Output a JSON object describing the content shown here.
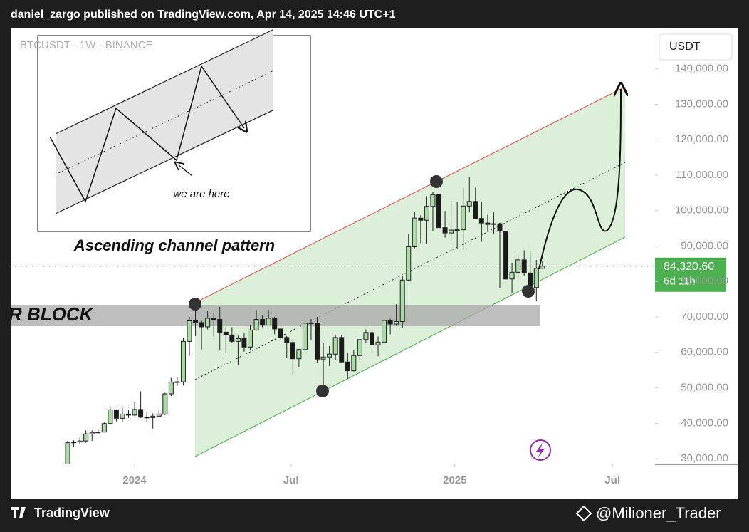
{
  "chart_data": {
    "type": "candlestick",
    "publisher_note": "daniel_zargo published on TradingView.com, Apr 14, 2025 14:46 UTC+1",
    "symbol_legend": "BTCUSDT · 1W · BINANCE",
    "currency": "USDT",
    "annotations": {
      "zone": "R BLOCK",
      "caption": "Ascending channel pattern",
      "pointer": "we are here"
    },
    "footer_logo": "TradingView",
    "watermark": "@Milioner_Trader",
    "open": [
      27200,
      34500,
      34700,
      35000,
      37000,
      37400,
      37500,
      39900,
      43800,
      41400,
      42600,
      42300,
      43900,
      41700,
      41600,
      42000,
      42600,
      48300,
      51600,
      51700,
      63100,
      68900,
      68400,
      67200,
      69600,
      69300,
      65700,
      64900,
      63100,
      63900,
      61500,
      66300,
      69300,
      67700,
      69600,
      66600,
      64200,
      62800,
      58200,
      60800,
      68200,
      68300,
      58100,
      58700,
      59500,
      64200,
      57300,
      54800,
      59100,
      63600,
      65600,
      62100,
      62900,
      69000,
      68000,
      68700,
      80400,
      89800,
      97900,
      97300,
      101200,
      104500,
      95200,
      93700,
      94500,
      94600,
      101300,
      102600,
      97800,
      96500,
      96100,
      96300,
      94200,
      80700,
      82600,
      86100,
      82400,
      78300,
      83700
    ],
    "high": [
      35000,
      35200,
      35900,
      38000,
      38000,
      38400,
      40200,
      44500,
      43800,
      44400,
      43900,
      45900,
      49000,
      43200,
      42800,
      43800,
      48600,
      52800,
      52900,
      64000,
      70000,
      73800,
      68900,
      71800,
      71300,
      72800,
      66900,
      67100,
      64700,
      65500,
      67700,
      71900,
      70600,
      72000,
      70000,
      66900,
      64600,
      63800,
      61000,
      68400,
      69400,
      70000,
      62700,
      61800,
      65000,
      64900,
      59800,
      60700,
      64100,
      66500,
      66000,
      64500,
      69400,
      69500,
      73600,
      81500,
      93500,
      99600,
      98700,
      104100,
      105300,
      108300,
      99900,
      102700,
      102500,
      106400,
      109600,
      106500,
      102500,
      98800,
      99500,
      96600,
      94400,
      85300,
      87400,
      88800,
      88500,
      86100,
      85800
    ],
    "low": [
      26900,
      33400,
      34100,
      34500,
      35000,
      36800,
      37500,
      39900,
      40500,
      40500,
      41500,
      42000,
      41500,
      40500,
      38500,
      41800,
      42300,
      47700,
      50500,
      50900,
      59000,
      64600,
      60800,
      66500,
      64500,
      60600,
      59600,
      62800,
      56500,
      60200,
      60800,
      66100,
      67100,
      67600,
      65100,
      63400,
      58400,
      53500,
      55900,
      60100,
      63500,
      57100,
      49000,
      56100,
      57800,
      57200,
      52500,
      54600,
      57500,
      62700,
      59800,
      58900,
      62900,
      65100,
      67500,
      66800,
      80200,
      89400,
      90800,
      90500,
      94200,
      92200,
      92400,
      91400,
      89200,
      89300,
      99500,
      97700,
      91200,
      94100,
      93400,
      78200,
      80000,
      76600,
      81200,
      81600,
      77100,
      74400,
      83700
    ],
    "close": [
      34500,
      34700,
      35000,
      37000,
      37400,
      37500,
      39900,
      43800,
      41400,
      42600,
      42300,
      43900,
      41700,
      41600,
      42000,
      42600,
      48300,
      51600,
      51700,
      63100,
      68900,
      68400,
      67200,
      69600,
      69300,
      65700,
      64900,
      63100,
      63900,
      61500,
      66300,
      69300,
      67700,
      69600,
      66600,
      64200,
      62800,
      58200,
      60800,
      68200,
      68300,
      58100,
      58700,
      59500,
      64200,
      57300,
      54800,
      59100,
      63600,
      65600,
      62100,
      62900,
      69000,
      68000,
      68700,
      80400,
      89800,
      97900,
      97300,
      101200,
      104500,
      95200,
      93700,
      94500,
      94600,
      101300,
      102600,
      97800,
      96500,
      96100,
      96300,
      94200,
      80700,
      82600,
      86100,
      82400,
      78300,
      83700,
      84300
    ],
    "up_color": "#a9dca6",
    "down_color": "#1b1b1b",
    "ylim": [
      28400,
      151400
    ],
    "yticks": [
      {
        "value": 30000,
        "label": "30,000.00"
      },
      {
        "value": 40000,
        "label": "40,000.00"
      },
      {
        "value": 50000,
        "label": "50,000.00"
      },
      {
        "value": 60000,
        "label": "60,000.00"
      },
      {
        "value": 70000,
        "label": "70,000.00"
      },
      {
        "value": 80000,
        "label": "80,000.00"
      },
      {
        "value": 90000,
        "label": "90,000.00"
      },
      {
        "value": 100000,
        "label": "100,000.00"
      },
      {
        "value": 110000,
        "label": "110,000.00"
      },
      {
        "value": 120000,
        "label": "120,000.00"
      },
      {
        "value": 130000,
        "label": "130,000.00"
      },
      {
        "value": 140000,
        "label": "140,000.00"
      }
    ],
    "xlim": [
      -9.36,
      96.5
    ],
    "xticks": [
      {
        "value": 11,
        "label": "2024"
      },
      {
        "value": 36.7,
        "label": "Jul"
      },
      {
        "value": 63.6,
        "label": "2025"
      },
      {
        "value": 89.5,
        "label": "Jul"
      }
    ],
    "last_price": {
      "value": 84320.6,
      "label": "84,320.60"
    },
    "countdown": "6d 11h",
    "grid": false
  }
}
